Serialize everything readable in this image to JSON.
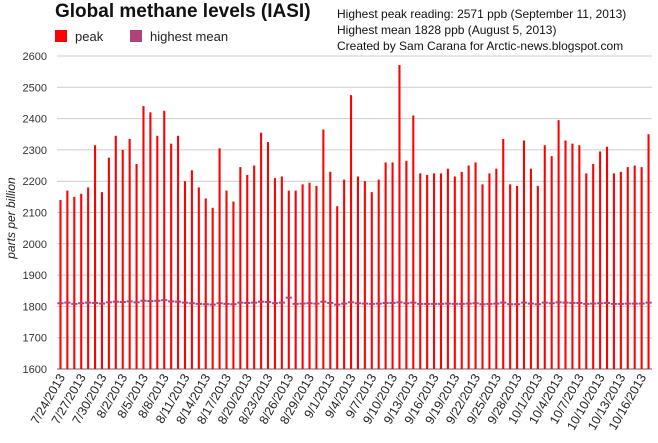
{
  "title": "Global methane levels (IASI)",
  "legend": [
    {
      "label": "peak",
      "color": "#ff0000"
    },
    {
      "label": "highest mean",
      "color": "#b0447a"
    }
  ],
  "info_lines": [
    "Highest peak reading: 2571 ppb (September 11, 2013)",
    "Highest mean 1828 ppb (August 5, 2013)",
    "Created by Sam Carana for Arctic-news.blogspot.com"
  ],
  "chart_data": {
    "type": "bar",
    "ylabel": "parts per billion",
    "ylim": [
      1600,
      2600
    ],
    "yticks": [
      1600,
      1700,
      1800,
      1900,
      2000,
      2100,
      2200,
      2300,
      2400,
      2500,
      2600
    ],
    "grid": true,
    "x_tick_labels": [
      "7/24/2013",
      "7/27/2013",
      "7/30/2013",
      "8/2/2013",
      "8/5/2013",
      "8/8/2013",
      "8/11/2013",
      "8/14/2013",
      "8/17/2013",
      "8/20/2013",
      "8/23/2013",
      "8/26/2013",
      "8/29/2013",
      "9/1/2013",
      "9/4/2013",
      "9/7/2013",
      "9/10/2013",
      "9/13/2013",
      "9/16/2013",
      "9/19/2013",
      "9/22/2013",
      "9/25/2013",
      "9/28/2013",
      "10/1/2013",
      "10/4/2013",
      "10/7/2013",
      "10/10/2013",
      "10/13/2013",
      "10/16/2013"
    ],
    "series": [
      {
        "name": "peak",
        "color": "#ff0000",
        "values": [
          2140,
          2170,
          2150,
          2160,
          2180,
          2315,
          2165,
          2275,
          2345,
          2300,
          2335,
          2255,
          2440,
          2420,
          2345,
          2425,
          2320,
          2345,
          2200,
          2235,
          2180,
          2145,
          2115,
          2305,
          2170,
          2135,
          2245,
          2220,
          2250,
          2355,
          2325,
          2210,
          2215,
          2170,
          2170,
          2190,
          2195,
          2185,
          2365,
          2230,
          2120,
          2205,
          2475,
          2215,
          2200,
          2165,
          2205,
          2260,
          2260,
          2571,
          2265,
          2410,
          2225,
          2220,
          2225,
          2225,
          2240,
          2215,
          2230,
          2250,
          2260,
          2190,
          2225,
          2240,
          2335,
          2190,
          2185,
          2330,
          2240,
          2185,
          2315,
          2280,
          2395,
          2330,
          2320,
          2315,
          2225,
          2255,
          2295,
          2310,
          2225,
          2230,
          2245,
          2250,
          2245,
          2350
        ]
      },
      {
        "name": "highest mean",
        "color": "#b0447a",
        "values": [
          1810,
          1812,
          1808,
          1810,
          1812,
          1811,
          1809,
          1813,
          1815,
          1814,
          1816,
          1813,
          1818,
          1817,
          1818,
          1820,
          1816,
          1815,
          1812,
          1810,
          1808,
          1807,
          1806,
          1810,
          1808,
          1807,
          1812,
          1811,
          1812,
          1815,
          1814,
          1810,
          1812,
          1828,
          1808,
          1809,
          1810,
          1809,
          1815,
          1811,
          1806,
          1809,
          1813,
          1810,
          1809,
          1808,
          1809,
          1811,
          1811,
          1813,
          1810,
          1812,
          1808,
          1808,
          1808,
          1808,
          1809,
          1808,
          1808,
          1809,
          1810,
          1807,
          1808,
          1809,
          1812,
          1807,
          1807,
          1812,
          1809,
          1807,
          1812,
          1810,
          1813,
          1812,
          1811,
          1811,
          1808,
          1809,
          1810,
          1811,
          1808,
          1808,
          1809,
          1809,
          1809,
          1812
        ]
      }
    ]
  }
}
